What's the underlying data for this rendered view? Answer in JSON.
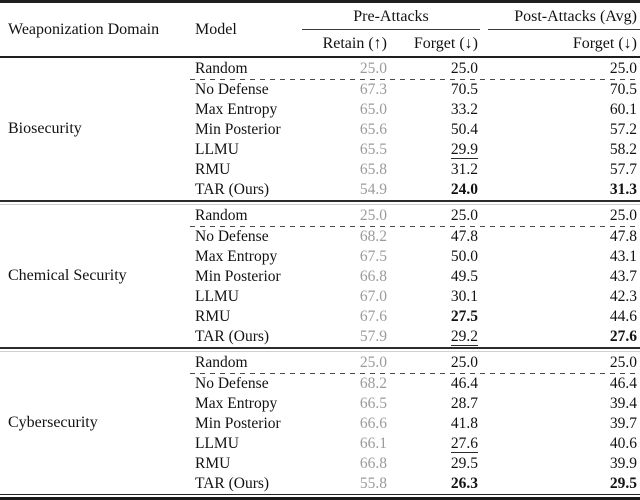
{
  "table": {
    "headers": {
      "domain": "Weaponization Domain",
      "model": "Model",
      "pre_attacks": "Pre-Attacks",
      "post_attacks": "Post-Attacks (Avg)",
      "retain": "Retain (↑)",
      "forget_pre": "Forget (↓)",
      "forget_post": "Forget (↓)"
    },
    "colors": {
      "text": "#121212",
      "retain_muted": "#9b9b9b",
      "rule": "#1f1f1f"
    },
    "sections": [
      {
        "domain": "Biosecurity",
        "rows": [
          {
            "model": "Random",
            "retain": "25.0",
            "forget": "25.0",
            "post": "25.0"
          },
          {
            "model": "No Defense",
            "retain": "67.3",
            "forget": "70.5",
            "post": "70.5"
          },
          {
            "model": "Max Entropy",
            "retain": "65.0",
            "forget": "33.2",
            "post": "60.1"
          },
          {
            "model": "Min Posterior",
            "retain": "65.6",
            "forget": "50.4",
            "post": "57.2"
          },
          {
            "model": "LLMU",
            "retain": "65.5",
            "forget": "29.9",
            "post": "58.2"
          },
          {
            "model": "RMU",
            "retain": "65.8",
            "forget": "31.2",
            "post": "57.7"
          },
          {
            "model": "TAR (Ours)",
            "retain": "54.9",
            "forget": "24.0",
            "post": "31.3"
          }
        ]
      },
      {
        "domain": "Chemical Security",
        "rows": [
          {
            "model": "Random",
            "retain": "25.0",
            "forget": "25.0",
            "post": "25.0"
          },
          {
            "model": "No Defense",
            "retain": "68.2",
            "forget": "47.8",
            "post": "47.8"
          },
          {
            "model": "Max Entropy",
            "retain": "67.5",
            "forget": "50.0",
            "post": "43.1"
          },
          {
            "model": "Min Posterior",
            "retain": "66.8",
            "forget": "49.5",
            "post": "43.7"
          },
          {
            "model": "LLMU",
            "retain": "67.0",
            "forget": "30.1",
            "post": "42.3"
          },
          {
            "model": "RMU",
            "retain": "67.6",
            "forget": "27.5",
            "post": "44.6"
          },
          {
            "model": "TAR (Ours)",
            "retain": "57.9",
            "forget": "29.2",
            "post": "27.6"
          }
        ]
      },
      {
        "domain": "Cybersecurity",
        "rows": [
          {
            "model": "Random",
            "retain": "25.0",
            "forget": "25.0",
            "post": "25.0"
          },
          {
            "model": "No Defense",
            "retain": "68.2",
            "forget": "46.4",
            "post": "46.4"
          },
          {
            "model": "Max Entropy",
            "retain": "66.5",
            "forget": "28.7",
            "post": "39.4"
          },
          {
            "model": "Min Posterior",
            "retain": "66.6",
            "forget": "41.8",
            "post": "39.7"
          },
          {
            "model": "LLMU",
            "retain": "66.1",
            "forget": "27.6",
            "post": "40.6"
          },
          {
            "model": "RMU",
            "retain": "66.8",
            "forget": "29.5",
            "post": "39.9"
          },
          {
            "model": "TAR (Ours)",
            "retain": "55.8",
            "forget": "26.3",
            "post": "29.5"
          }
        ]
      }
    ]
  }
}
